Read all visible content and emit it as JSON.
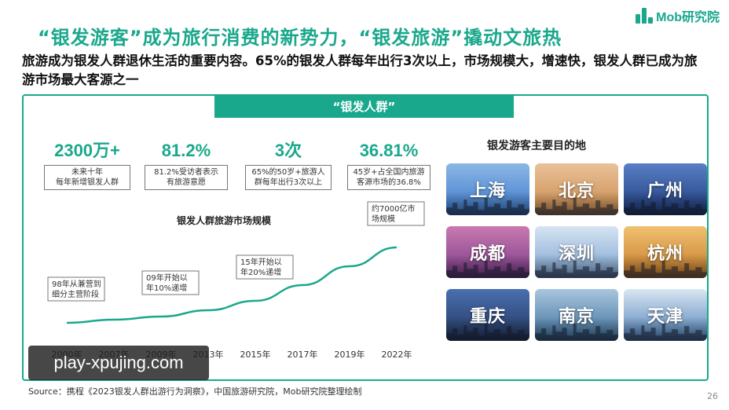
{
  "brand": {
    "name": "Mob研究院",
    "color": "#1aa88c",
    "icon": "bar-chart-icon"
  },
  "title": "“银发游客”成为旅行消费的新势力，“银发旅游”撬动文旅热",
  "subtitle": "旅游成为银发人群退休生活的重要内容。65%的银发人群每年出行3次以上，市场规模大，增速快，银发人群已成为旅游市场最大客源之一",
  "banner": "“银发人群”",
  "stats": [
    {
      "value": "2300万+",
      "desc_line1": "未来十年",
      "desc_line2": "每年新增银发人群"
    },
    {
      "value": "81.2%",
      "desc_line1": "81.2%受访者表示",
      "desc_line2": "有旅游意愿"
    },
    {
      "value": "3次",
      "desc_line1": "65%的50岁+旅游人",
      "desc_line2": "群每年出行3次以上"
    },
    {
      "value": "36.81%",
      "desc_line1": "45岁+占全国内旅游",
      "desc_line2": "客源市场的36.8%"
    }
  ],
  "chart_data": {
    "type": "line",
    "title": "银发人群旅游市场规模",
    "categories": [
      "2000年",
      "2007年",
      "2009年",
      "2013年",
      "2015年",
      "2017年",
      "2019年",
      "2022年"
    ],
    "values": [
      1,
      2,
      3,
      5,
      8,
      13,
      19,
      25
    ],
    "color": "#1aa88c",
    "grid": false,
    "annotations": [
      {
        "category": "2000年",
        "line1": "98年从兼营到",
        "line2": "细分主营阶段"
      },
      {
        "category": "2009年",
        "line1": "09年开始以",
        "line2": "年10%递增"
      },
      {
        "category": "2015年",
        "line1": "15年开始以",
        "line2": "年20%递增"
      },
      {
        "category": "2022年",
        "line1": "约7000亿市",
        "line2": "场规模"
      }
    ]
  },
  "destinations": {
    "title": "银发游客主要目的地",
    "cities": [
      {
        "name": "上海",
        "bg1": "#3b78c9",
        "bg2": "#8bb7e6"
      },
      {
        "name": "北京",
        "bg1": "#c98a4b",
        "bg2": "#e9c199"
      },
      {
        "name": "广州",
        "bg1": "#1d3a7a",
        "bg2": "#5a7fc6"
      },
      {
        "name": "成都",
        "bg1": "#7a3a8a",
        "bg2": "#c97ab0"
      },
      {
        "name": "深圳",
        "bg1": "#7aa2d0",
        "bg2": "#d6e4f2"
      },
      {
        "name": "杭州",
        "bg1": "#c57a2b",
        "bg2": "#f0c170"
      },
      {
        "name": "重庆",
        "bg1": "#23365e",
        "bg2": "#4a6fb0"
      },
      {
        "name": "南京",
        "bg1": "#3c6e9a",
        "bg2": "#a8c6de"
      },
      {
        "name": "天津",
        "bg1": "#4d7fb8",
        "bg2": "#d9e6f2"
      }
    ]
  },
  "watermark": "play-xpujing.com",
  "source": "Source：携程《2023银发人群出游行为洞察》，中国旅游研究院，Mob研究院整理绘制",
  "page_number": "26"
}
